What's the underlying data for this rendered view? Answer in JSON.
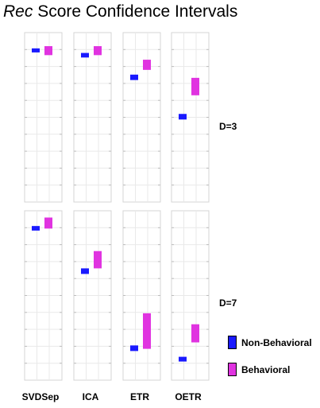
{
  "title": {
    "prefix": "Rec",
    "rest": " Score Confidence Intervals"
  },
  "chart_data": {
    "type": "interval",
    "title": "Rec Score Confidence Intervals",
    "methods": [
      "SVDSep",
      "ICA",
      "ETR",
      "OETR"
    ],
    "rows": [
      "D=3",
      "D=7"
    ],
    "ylim": [
      0,
      1
    ],
    "series": [
      {
        "name": "Non-Behavioral",
        "color": "#1a1aff"
      },
      {
        "name": "Behavioral",
        "color": "#e033e0"
      }
    ],
    "panels": [
      {
        "row": "D=3",
        "method": "SVDSep",
        "Non-Behavioral": [
          0.883,
          0.907
        ],
        "Behavioral": [
          0.867,
          0.92
        ]
      },
      {
        "row": "D=3",
        "method": "ICA",
        "Non-Behavioral": [
          0.853,
          0.88
        ],
        "Behavioral": [
          0.867,
          0.92
        ]
      },
      {
        "row": "D=3",
        "method": "ETR",
        "Non-Behavioral": [
          0.72,
          0.752
        ],
        "Behavioral": [
          0.78,
          0.84
        ]
      },
      {
        "row": "D=3",
        "method": "OETR",
        "Non-Behavioral": [
          0.487,
          0.52
        ],
        "Behavioral": [
          0.63,
          0.733
        ]
      },
      {
        "row": "D=7",
        "method": "SVDSep",
        "Non-Behavioral": [
          0.883,
          0.91
        ],
        "Behavioral": [
          0.895,
          0.96
        ]
      },
      {
        "row": "D=7",
        "method": "ICA",
        "Non-Behavioral": [
          0.627,
          0.66
        ],
        "Behavioral": [
          0.66,
          0.762
        ]
      },
      {
        "row": "D=7",
        "method": "ETR",
        "Non-Behavioral": [
          0.172,
          0.205
        ],
        "Behavioral": [
          0.185,
          0.395
        ]
      },
      {
        "row": "D=7",
        "method": "OETR",
        "Non-Behavioral": [
          0.11,
          0.138
        ],
        "Behavioral": [
          0.223,
          0.33
        ]
      }
    ]
  },
  "row_labels": [
    "D=3",
    "D=7"
  ],
  "col_labels": [
    "SVDSep",
    "ICA",
    "ETR",
    "OETR"
  ],
  "legend": {
    "nonbehavioral": "Non-Behavioral",
    "behavioral": "Behavioral"
  }
}
